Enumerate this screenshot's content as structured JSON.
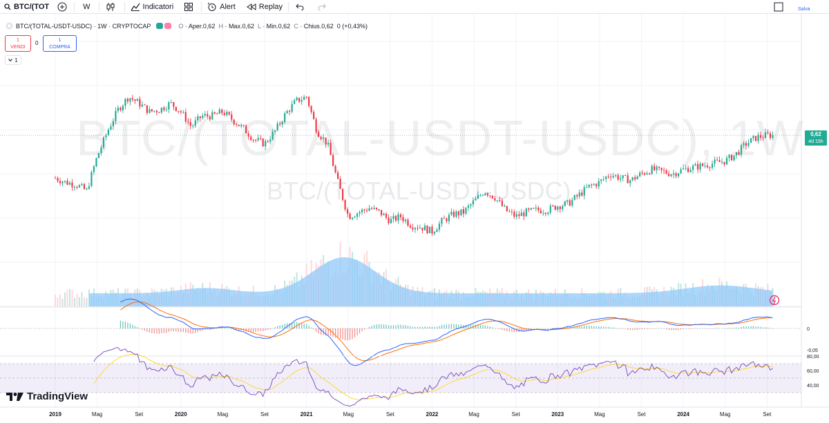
{
  "toolbar": {
    "symbol": "BTC/(TOT",
    "interval": "W",
    "indicators": "Indicatori",
    "alert": "Alert",
    "replay": "Replay",
    "save": "Salva"
  },
  "legend": {
    "title": "BTC/(TOTAL-USDT-USDC) · 1W · CRYPTOCAP",
    "open_label": "O",
    "open": "Aper.0,62",
    "high_label": "H",
    "high": "Max.0,62",
    "low_label": "L",
    "low": "Min.0,62",
    "close_label": "C",
    "close": "Chius.0,62",
    "change": "0 (+0,43%)"
  },
  "trade": {
    "sell_qty": "1",
    "sell_label": "VENDI",
    "spread": "0",
    "buy_qty": "1",
    "buy_label": "COMPRA",
    "collapse_count": "1"
  },
  "watermark": {
    "line1": "BTC/(TOTAL-USDT-USDC), 1W",
    "line2": "BTC/(TOTAL-USDT-USDC)"
  },
  "price_tag": {
    "value": "0,62",
    "countdown": "4d 15h"
  },
  "logo": "TradingView",
  "colors": {
    "up": "#22ab94",
    "down": "#f23645",
    "volume_ma": "#90caf9",
    "macd": "#2962ff",
    "signal": "#ff6d00",
    "rsi": "#7e57c2",
    "rsi_ma": "#fdd835"
  },
  "chart_data": {
    "type": "candlestick",
    "x_ticks": [
      "2019",
      "Mag",
      "Set",
      "2020",
      "Mag",
      "Set",
      "2021",
      "Mag",
      "Set",
      "2022",
      "Mag",
      "Set",
      "2023",
      "Mag",
      "Set",
      "2024",
      "Mag",
      "Set"
    ],
    "macd_ticks": [
      "0",
      "-0,05"
    ],
    "rsi_ticks": [
      "80,00",
      "60,00",
      "40,00"
    ],
    "last_price": 0.62,
    "anchors": [
      {
        "date": "2019-01",
        "price": 0.52
      },
      {
        "date": "2019-02",
        "price": 0.51
      },
      {
        "date": "2019-03",
        "price": 0.505
      },
      {
        "date": "2019-04",
        "price": 0.49
      },
      {
        "date": "2019-05",
        "price": 0.57
      },
      {
        "date": "2019-06",
        "price": 0.63
      },
      {
        "date": "2019-07",
        "price": 0.68
      },
      {
        "date": "2019-08",
        "price": 0.71
      },
      {
        "date": "2019-09",
        "price": 0.695
      },
      {
        "date": "2019-10",
        "price": 0.675
      },
      {
        "date": "2019-11",
        "price": 0.68
      },
      {
        "date": "2019-12",
        "price": 0.695
      },
      {
        "date": "2020-01",
        "price": 0.675
      },
      {
        "date": "2020-02",
        "price": 0.64
      },
      {
        "date": "2020-03",
        "price": 0.665
      },
      {
        "date": "2020-04",
        "price": 0.665
      },
      {
        "date": "2020-05",
        "price": 0.675
      },
      {
        "date": "2020-06",
        "price": 0.655
      },
      {
        "date": "2020-07",
        "price": 0.635
      },
      {
        "date": "2020-08",
        "price": 0.61
      },
      {
        "date": "2020-09",
        "price": 0.6
      },
      {
        "date": "2020-10",
        "price": 0.63
      },
      {
        "date": "2020-11",
        "price": 0.67
      },
      {
        "date": "2020-12",
        "price": 0.7
      },
      {
        "date": "2021-01",
        "price": 0.71
      },
      {
        "date": "2021-02",
        "price": 0.63
      },
      {
        "date": "2021-03",
        "price": 0.6
      },
      {
        "date": "2021-04",
        "price": 0.51
      },
      {
        "date": "2021-05",
        "price": 0.43
      },
      {
        "date": "2021-06",
        "price": 0.44
      },
      {
        "date": "2021-07",
        "price": 0.45
      },
      {
        "date": "2021-08",
        "price": 0.44
      },
      {
        "date": "2021-09",
        "price": 0.42
      },
      {
        "date": "2021-10",
        "price": 0.43
      },
      {
        "date": "2021-11",
        "price": 0.41
      },
      {
        "date": "2021-12",
        "price": 0.405
      },
      {
        "date": "2022-01",
        "price": 0.395
      },
      {
        "date": "2022-02",
        "price": 0.42
      },
      {
        "date": "2022-03",
        "price": 0.435
      },
      {
        "date": "2022-04",
        "price": 0.44
      },
      {
        "date": "2022-05",
        "price": 0.465
      },
      {
        "date": "2022-06",
        "price": 0.49
      },
      {
        "date": "2022-07",
        "price": 0.475
      },
      {
        "date": "2022-08",
        "price": 0.445
      },
      {
        "date": "2022-09",
        "price": 0.43
      },
      {
        "date": "2022-10",
        "price": 0.44
      },
      {
        "date": "2022-11",
        "price": 0.445
      },
      {
        "date": "2022-12",
        "price": 0.445
      },
      {
        "date": "2023-01",
        "price": 0.455
      },
      {
        "date": "2023-02",
        "price": 0.46
      },
      {
        "date": "2023-03",
        "price": 0.48
      },
      {
        "date": "2023-04",
        "price": 0.5
      },
      {
        "date": "2023-05",
        "price": 0.51
      },
      {
        "date": "2023-06",
        "price": 0.53
      },
      {
        "date": "2023-07",
        "price": 0.52
      },
      {
        "date": "2023-08",
        "price": 0.515
      },
      {
        "date": "2023-09",
        "price": 0.53
      },
      {
        "date": "2023-10",
        "price": 0.54
      },
      {
        "date": "2023-11",
        "price": 0.535
      },
      {
        "date": "2023-12",
        "price": 0.53
      },
      {
        "date": "2024-01",
        "price": 0.54
      },
      {
        "date": "2024-02",
        "price": 0.545
      },
      {
        "date": "2024-03",
        "price": 0.55
      },
      {
        "date": "2024-04",
        "price": 0.555
      },
      {
        "date": "2024-05",
        "price": 0.56
      },
      {
        "date": "2024-06",
        "price": 0.575
      },
      {
        "date": "2024-07",
        "price": 0.6
      },
      {
        "date": "2024-08",
        "price": 0.615
      },
      {
        "date": "2024-09",
        "price": 0.62
      }
    ]
  }
}
